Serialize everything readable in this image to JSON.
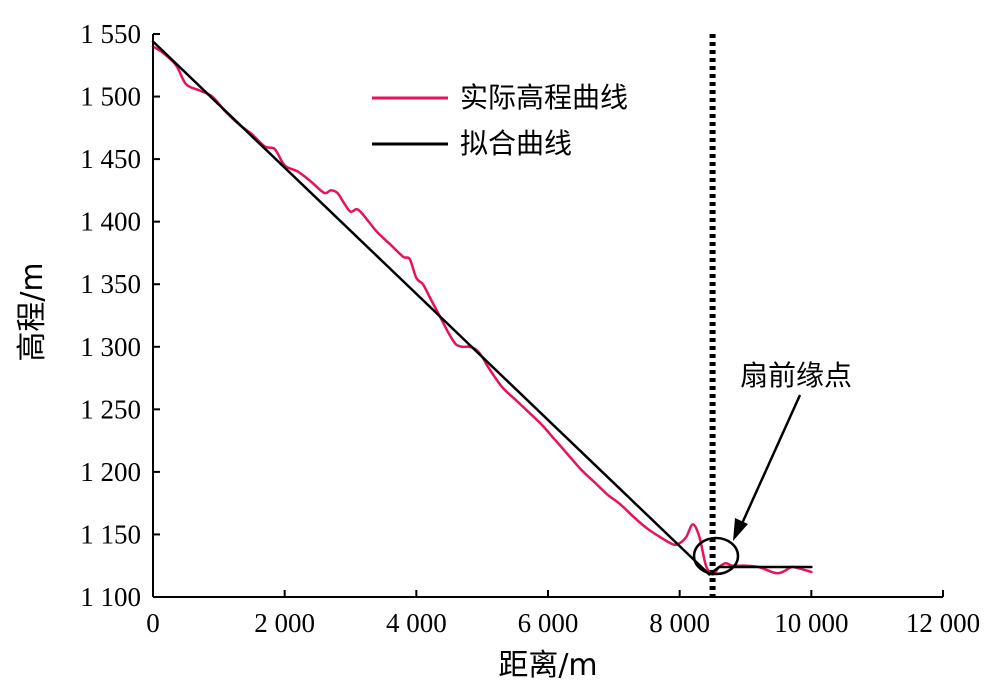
{
  "chart_data": {
    "type": "line",
    "title": "",
    "xlabel": "距离/m",
    "ylabel": "高程/m",
    "xlim": [
      0,
      12000
    ],
    "ylim": [
      1100,
      1550
    ],
    "x_ticks": [
      0,
      2000,
      4000,
      6000,
      8000,
      10000,
      12000
    ],
    "x_tick_labels": [
      "0",
      "2 000",
      "4 000",
      "6 000",
      "8 000",
      "10 000",
      "12 000"
    ],
    "y_ticks": [
      1100,
      1150,
      1200,
      1250,
      1300,
      1350,
      1400,
      1450,
      1500,
      1550
    ],
    "y_tick_labels": [
      "1 100",
      "1 150",
      "1 200",
      "1 250",
      "1 300",
      "1 350",
      "1 400",
      "1 450",
      "1 500",
      "1 550"
    ],
    "grid": false,
    "legend_position": "top-center",
    "series": [
      {
        "name": "实际高程曲线",
        "color": "#e8115b",
        "x": [
          0,
          150,
          350,
          500,
          700,
          900,
          1100,
          1300,
          1500,
          1700,
          1850,
          2000,
          2200,
          2400,
          2600,
          2700,
          2800,
          2900,
          3000,
          3100,
          3200,
          3400,
          3600,
          3800,
          3900,
          4000,
          4100,
          4200,
          4300,
          4400,
          4500,
          4600,
          4700,
          4800,
          4900,
          5000,
          5100,
          5300,
          5500,
          5700,
          5900,
          6100,
          6300,
          6500,
          6700,
          6900,
          7100,
          7300,
          7500,
          7700,
          7900,
          8000,
          8100,
          8200,
          8300,
          8400,
          8500,
          8600,
          8700,
          8800,
          9000,
          9200,
          9400,
          9500,
          9600,
          9700,
          9800,
          10000
        ],
        "y": [
          1540,
          1535,
          1525,
          1510,
          1505,
          1500,
          1488,
          1478,
          1470,
          1460,
          1458,
          1445,
          1440,
          1432,
          1423,
          1425,
          1423,
          1415,
          1408,
          1410,
          1405,
          1392,
          1382,
          1372,
          1370,
          1355,
          1350,
          1340,
          1330,
          1320,
          1310,
          1302,
          1300,
          1300,
          1298,
          1292,
          1283,
          1268,
          1258,
          1248,
          1238,
          1226,
          1214,
          1202,
          1192,
          1182,
          1174,
          1164,
          1155,
          1148,
          1142,
          1143,
          1148,
          1158,
          1148,
          1125,
          1118,
          1124,
          1127,
          1125,
          1125,
          1124,
          1120,
          1119,
          1121,
          1124,
          1123,
          1120
        ]
      },
      {
        "name": "拟合曲线",
        "color": "#000000",
        "x": [
          0,
          8450,
          8600,
          10000
        ],
        "y": [
          1544,
          1118,
          1124,
          1124
        ]
      }
    ],
    "annotations": [
      {
        "label": "扇前缘点",
        "type": "arrow-and-circle",
        "x": 8450,
        "y": 1120
      }
    ],
    "reference_line": {
      "type": "vertical-dotted",
      "x": 8500
    }
  }
}
